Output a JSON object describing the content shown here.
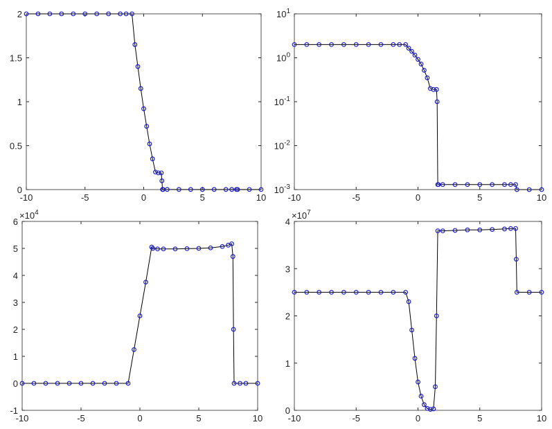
{
  "chart_data": [
    {
      "type": "line_scatter",
      "xlim": [
        -10,
        10
      ],
      "xticks": [
        -10,
        -5,
        0,
        5,
        10
      ],
      "ylim": [
        0,
        2
      ],
      "yticks": [
        0,
        0.5,
        1,
        1.5,
        2
      ],
      "ylog": false,
      "x": [
        -10,
        -9,
        -8,
        -7,
        -6,
        -5,
        -4,
        -3,
        -2,
        -1.5,
        -1,
        -0.75,
        -0.5,
        -0.25,
        0,
        0.25,
        0.5,
        0.75,
        1,
        1.25,
        1.5,
        1.55,
        1.6,
        1.65,
        2,
        3,
        4,
        5,
        6,
        7,
        7.5,
        7.9,
        8,
        9,
        10
      ],
      "series": [
        {
          "color": "#1c1cc8",
          "line_color": "#000000",
          "values": [
            2,
            2,
            2,
            2,
            2,
            2,
            2,
            2,
            2,
            2,
            2,
            1.65,
            1.4,
            1.15,
            0.92,
            0.72,
            0.52,
            0.35,
            0.2,
            0.19,
            0.19,
            0.1,
            0.0013,
            0.0013,
            0.0013,
            0.0013,
            0.0013,
            0.0013,
            0.0013,
            0.0013,
            0.0013,
            0.0013,
            0.001,
            0.001,
            0.001
          ]
        }
      ]
    },
    {
      "type": "line_scatter",
      "xlim": [
        -10,
        10
      ],
      "xticks": [
        -10,
        -5,
        0,
        5,
        10
      ],
      "ylim": [
        0.001,
        10
      ],
      "yticks": [
        {
          "value": 0.001,
          "label": "10^-3"
        },
        {
          "value": 0.01,
          "label": "10^-2"
        },
        {
          "value": 0.1,
          "label": "10^-1"
        },
        {
          "value": 1,
          "label": "10^0"
        },
        {
          "value": 10,
          "label": "10^1"
        }
      ],
      "ylog": true,
      "x": [
        -10,
        -9,
        -8,
        -7,
        -6,
        -5,
        -4,
        -3,
        -2,
        -1.5,
        -1,
        -0.75,
        -0.5,
        -0.25,
        0,
        0.25,
        0.5,
        0.75,
        1,
        1.25,
        1.5,
        1.55,
        1.6,
        1.65,
        2,
        3,
        4,
        5,
        6,
        7,
        7.5,
        7.9,
        8,
        9,
        10
      ],
      "series": [
        {
          "color": "#1c1cc8",
          "line_color": "#000000",
          "values": [
            2,
            2,
            2,
            2,
            2,
            2,
            2,
            2,
            2,
            2,
            2,
            1.65,
            1.4,
            1.15,
            0.92,
            0.72,
            0.52,
            0.35,
            0.2,
            0.19,
            0.19,
            0.1,
            0.0013,
            0.0013,
            0.0013,
            0.0013,
            0.0013,
            0.0013,
            0.0013,
            0.0013,
            0.0013,
            0.0013,
            0.001,
            0.001,
            0.001
          ]
        }
      ]
    },
    {
      "type": "line_scatter",
      "xlim": [
        -10,
        10
      ],
      "xticks": [
        -10,
        -5,
        0,
        5,
        10
      ],
      "ylim": [
        -1,
        6
      ],
      "yticks": [
        -1,
        0,
        1,
        2,
        3,
        4,
        5,
        6
      ],
      "ylog": false,
      "y_multiplier": "×10^4",
      "x": [
        -10,
        -9,
        -8,
        -7,
        -6,
        -5,
        -4,
        -3,
        -2,
        -1,
        -0.5,
        0,
        0.5,
        1,
        1.1,
        1.5,
        2,
        3,
        4,
        5,
        6,
        7,
        7.5,
        7.8,
        7.9,
        7.95,
        8,
        8.5,
        9,
        10
      ],
      "series": [
        {
          "color": "#1c1cc8",
          "line_color": "#000000",
          "values": [
            0,
            0,
            0,
            0,
            0,
            0,
            0,
            0,
            0,
            0,
            1.25,
            2.5,
            3.75,
            5.05,
            5.0,
            4.98,
            4.98,
            4.98,
            4.99,
            5.0,
            5.02,
            5.07,
            5.12,
            5.17,
            4.7,
            2.0,
            0,
            0,
            0,
            0
          ]
        }
      ]
    },
    {
      "type": "line_scatter",
      "xlim": [
        -10,
        10
      ],
      "xticks": [
        -10,
        -5,
        0,
        5,
        10
      ],
      "ylim": [
        0,
        4
      ],
      "yticks": [
        0,
        1,
        2,
        3,
        4
      ],
      "ylog": false,
      "y_multiplier": "×10^7",
      "x": [
        -10,
        -9,
        -8,
        -7,
        -6,
        -5,
        -4,
        -3,
        -2,
        -1,
        -0.75,
        -0.5,
        -0.25,
        0,
        0.25,
        0.5,
        0.75,
        1,
        1.25,
        1.4,
        1.5,
        1.6,
        2,
        3,
        4,
        5,
        6,
        7,
        7.5,
        7.9,
        7.95,
        8,
        9,
        10
      ],
      "series": [
        {
          "color": "#1c1cc8",
          "line_color": "#000000",
          "values": [
            2.5,
            2.5,
            2.5,
            2.5,
            2.5,
            2.5,
            2.5,
            2.5,
            2.5,
            2.5,
            2.3,
            1.7,
            1.1,
            0.6,
            0.3,
            0.12,
            0.04,
            0.02,
            0.03,
            0.5,
            2.0,
            3.8,
            3.8,
            3.81,
            3.82,
            3.82,
            3.83,
            3.84,
            3.85,
            3.85,
            3.2,
            2.5,
            2.5,
            2.5
          ]
        }
      ]
    }
  ]
}
